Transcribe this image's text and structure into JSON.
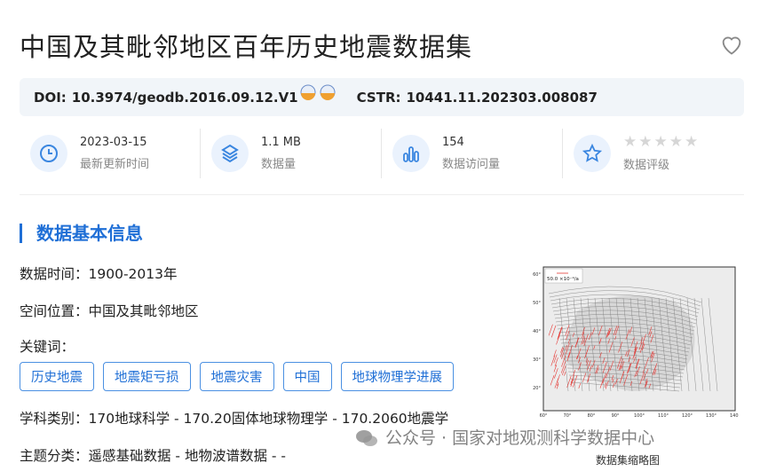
{
  "title": "中国及其毗邻地区百年历史地震数据集",
  "doi": {
    "label": "DOI:",
    "value": "10.3974/geodb.2016.09.12.V1",
    "cstr_label": "CSTR:",
    "cstr_value": "10441.11.202303.008087"
  },
  "stats": [
    {
      "icon": "clock-icon",
      "value": "2023-03-15",
      "label": "最新更新时间"
    },
    {
      "icon": "layers-icon",
      "value": "1.1 MB",
      "label": "数据量"
    },
    {
      "icon": "bar-chart-icon",
      "value": "154",
      "label": "数据访问量"
    },
    {
      "icon": "star-icon",
      "value": "",
      "label": "数据评级",
      "rating": 0,
      "max_rating": 5
    }
  ],
  "section_title": "数据基本信息",
  "info": {
    "time": "数据时间：1900-2013年",
    "location": "空间位置：中国及其毗邻地区",
    "keywords_label": "关键词：",
    "keywords": [
      "历史地震",
      "地震矩亏损",
      "地震灾害",
      "中国",
      "地球物理学进展"
    ],
    "subject": "学科类别：170地球科学 - 170.20固体地球物理学 - 170.2060地震学",
    "theme": "主题分类：遥感基础数据 - 地物波谱数据 - -"
  },
  "map": {
    "legend": "50.0 ×10⁻⁹/a",
    "lat_ticks": [
      "60°",
      "50°",
      "40°",
      "30°",
      "20°"
    ],
    "lon_ticks": [
      "60°",
      "70°",
      "80°",
      "90°",
      "100°",
      "110°",
      "120°",
      "130°",
      "140°"
    ],
    "caption": "数据集缩略图"
  },
  "watermark": "公众号 · 国家对地观测科学数据中心",
  "colors": {
    "accent": "#1f6fd6",
    "vectors": "#e53935"
  }
}
